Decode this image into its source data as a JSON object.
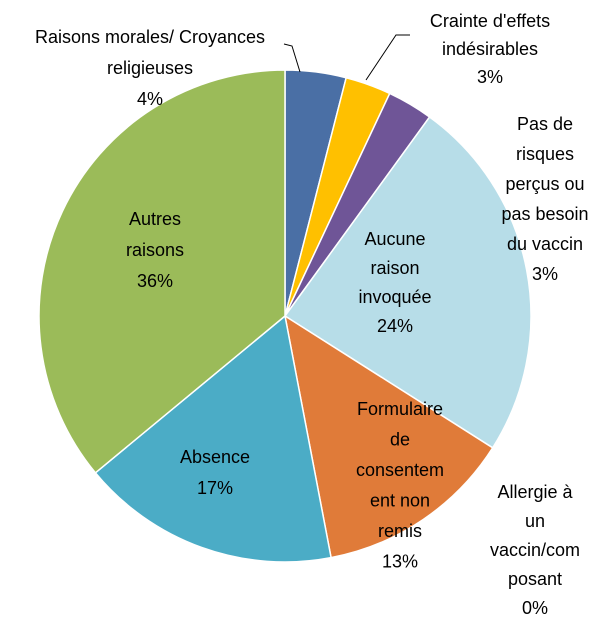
{
  "chart_data": {
    "type": "pie",
    "categories": [
      [
        "Raisons morales/ Croyances",
        "religieuses"
      ],
      [
        "Crainte d'effets",
        "indésirables"
      ],
      [
        "Pas de",
        "risques",
        "perçus ou",
        "pas besoin",
        "du vaccin"
      ],
      [
        "Aucune",
        "raison",
        "invoquée"
      ],
      [
        "Allergie à",
        "un",
        "vaccin/com",
        "posant"
      ],
      [
        "Formulaire",
        "de",
        "consentem",
        "ent non",
        "remis"
      ],
      [
        "Absence"
      ],
      [
        "Autres",
        "raisons"
      ]
    ],
    "values": [
      4,
      3,
      3,
      24,
      0,
      13,
      17,
      36
    ],
    "value_labels": [
      "4%",
      "3%",
      "3%",
      "24%",
      "0%",
      "13%",
      "17%",
      "36%"
    ],
    "colors": [
      "#4a6fa5",
      "#ffc000",
      "#6f5597",
      "#b7dde8",
      "#c0504d",
      "#e07b39",
      "#4bacc6",
      "#9bbb59"
    ]
  }
}
